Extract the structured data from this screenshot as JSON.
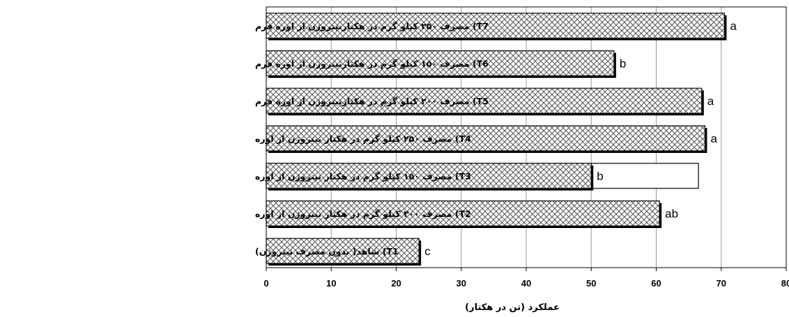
{
  "chart_data": {
    "type": "bar",
    "orientation": "horizontal",
    "title": "",
    "xlabel": "عملکرد (تن در هکتار)",
    "ylabel": "",
    "xlim": [
      0,
      80
    ],
    "x_ticks": [
      "0",
      "10",
      "20",
      "30",
      "40",
      "50",
      "60",
      "70",
      "80"
    ],
    "grid": "vertical",
    "categories": [
      "T7) مصرف ۲۵۰ کیلو گرم در هکتارنیتروژن از  اوره فرم",
      "T6) مصرف ۱۵۰ کیلو گرم در هکتارنیتروژن از  اوره فرم",
      "T5) مصرف ۲۰۰ کیلو گرم در هکتارنیتروژن از  اوره فرم",
      "T4) مصرف ۲۵۰ کیلو گرم در هکتار نیتروژن از اوره",
      "T3) مصرف ۱۵۰ کیلو گرم در هکتار نیتروژن از اوره",
      "T2) مصرف ۲۰۰ کیلو گرم در هکتار نیتروژن از اوره",
      "T1) شاهد( بدون مصرف نیتروژن)"
    ],
    "series": [
      {
        "values": [
          70.5,
          53.5,
          67,
          67.5,
          50,
          60.5,
          23.5
        ],
        "labels": [
          "a",
          "b",
          "a",
          "a",
          "b",
          "ab",
          "c"
        ]
      }
    ],
    "extra_outline_bar": {
      "category_index": 4,
      "value": 66.5
    }
  }
}
